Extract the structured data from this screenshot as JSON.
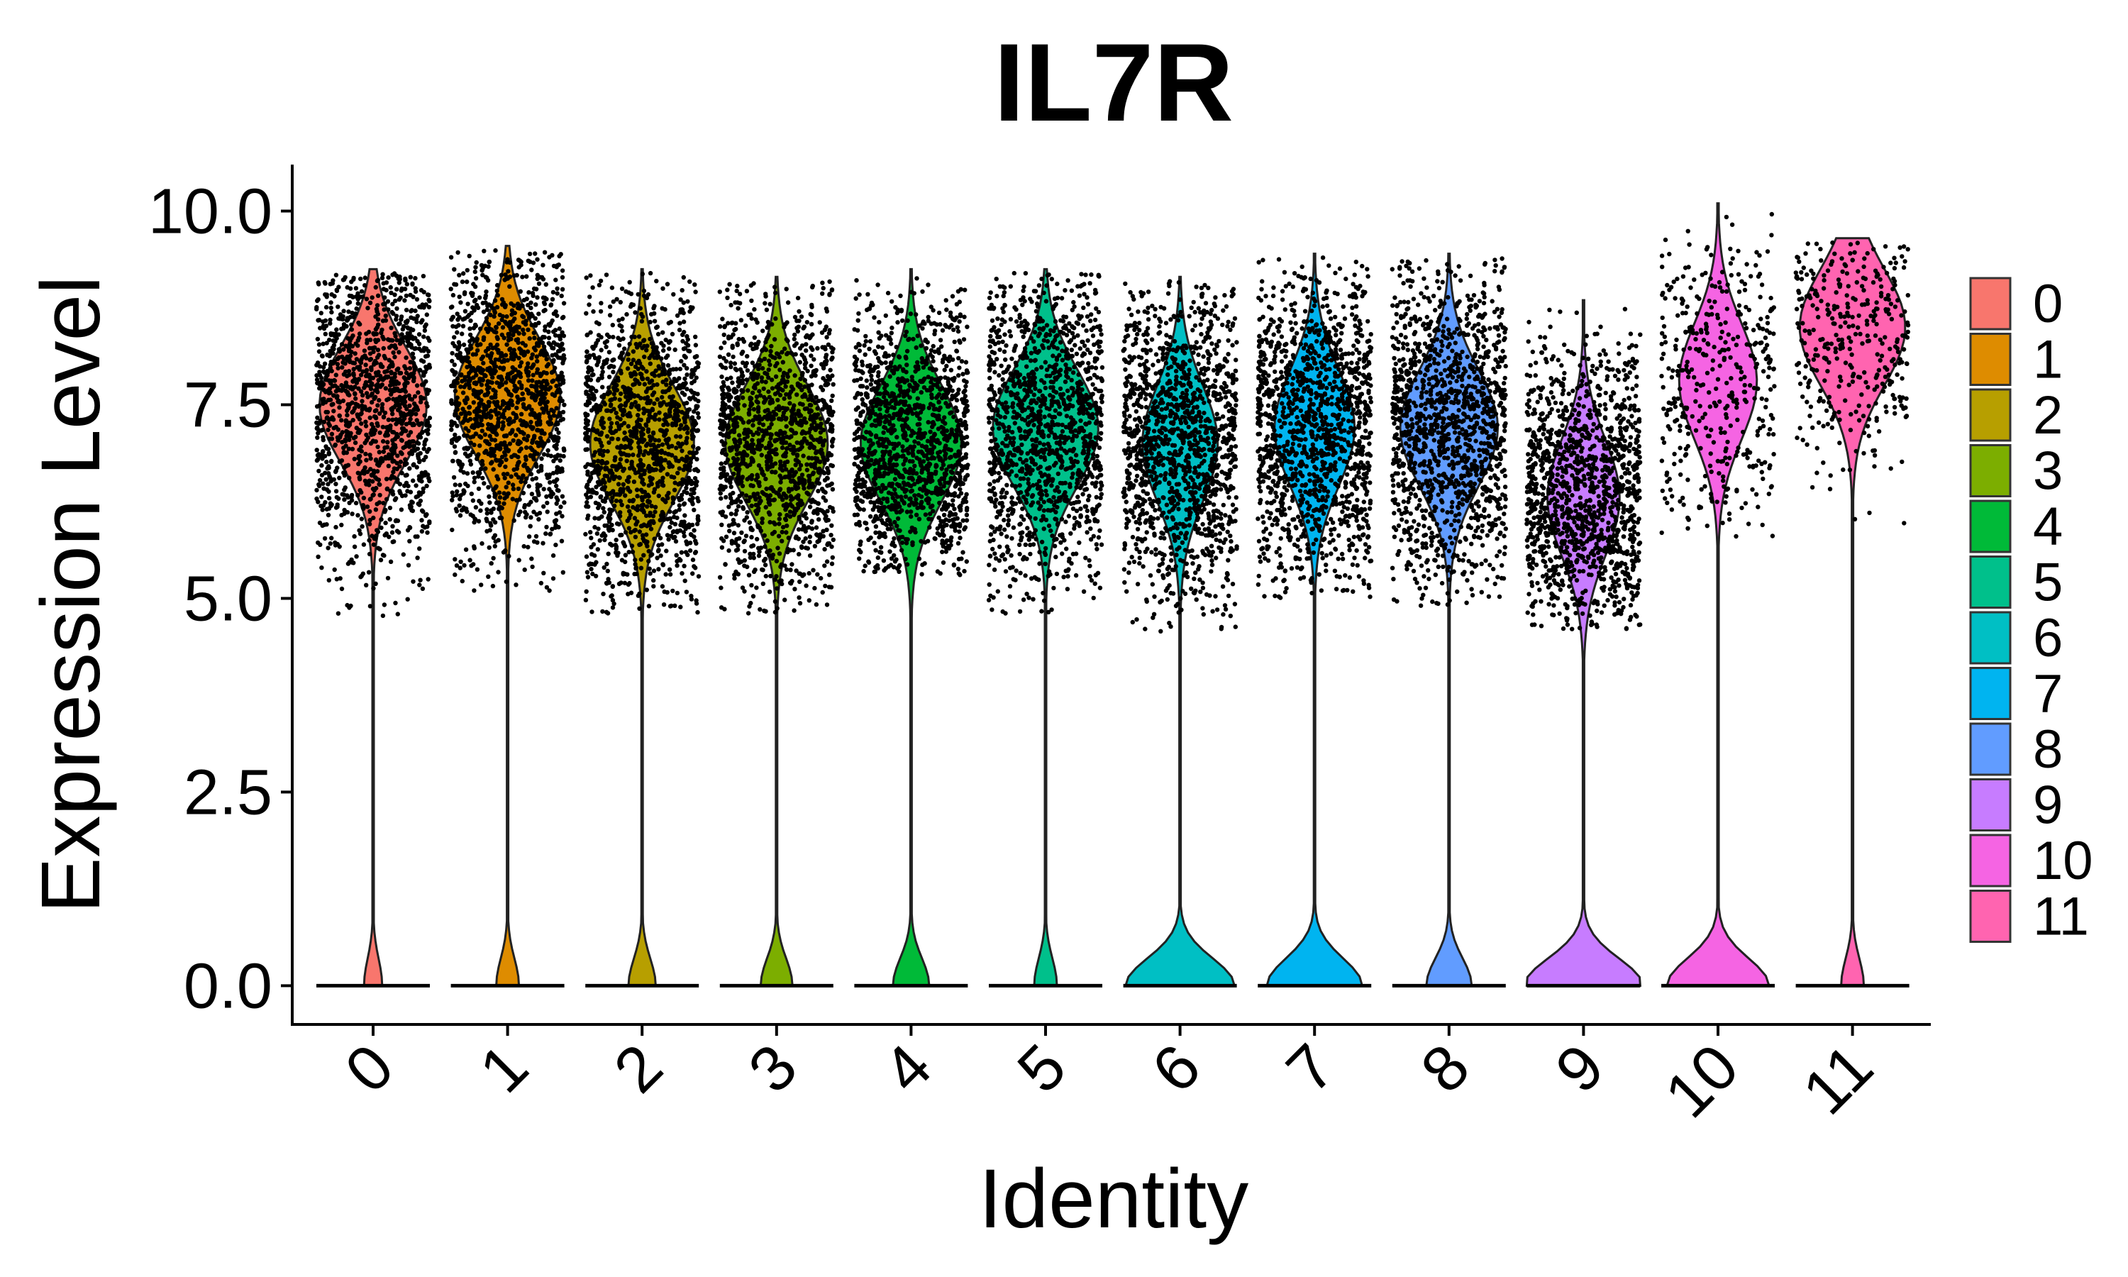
{
  "chart_data": {
    "type": "violin",
    "title": "IL7R",
    "xlabel": "Identity",
    "ylabel": "Expression Level",
    "ylim": [
      -0.5,
      10.6
    ],
    "yticks": [
      "0.0",
      "2.5",
      "5.0",
      "7.5",
      "10.0"
    ],
    "ytick_values": [
      0,
      2.5,
      5,
      7.5,
      10
    ],
    "categories": [
      "0",
      "1",
      "2",
      "3",
      "4",
      "5",
      "6",
      "7",
      "8",
      "9",
      "10",
      "11"
    ],
    "legend_position": "right",
    "colors": [
      "#F8766D",
      "#DE8C00",
      "#B79F00",
      "#7CAE00",
      "#00BA38",
      "#00C08B",
      "#00BFC4",
      "#00B4F0",
      "#619CFF",
      "#C77CFF",
      "#F564E3",
      "#FF64B0"
    ],
    "groups": [
      {
        "name": "0",
        "expr_min": 4.7,
        "expr_max": 9.2,
        "expr_center": 7.5,
        "zero_fraction": 0.08,
        "dense_points": true
      },
      {
        "name": "1",
        "expr_min": 5.1,
        "expr_max": 9.5,
        "expr_center": 7.6,
        "zero_fraction": 0.1,
        "dense_points": true
      },
      {
        "name": "2",
        "expr_min": 4.8,
        "expr_max": 9.2,
        "expr_center": 7.0,
        "zero_fraction": 0.12,
        "dense_points": true
      },
      {
        "name": "3",
        "expr_min": 4.8,
        "expr_max": 9.1,
        "expr_center": 7.0,
        "zero_fraction": 0.14,
        "dense_points": true
      },
      {
        "name": "4",
        "expr_min": 5.3,
        "expr_max": 9.2,
        "expr_center": 7.0,
        "zero_fraction": 0.16,
        "dense_points": true
      },
      {
        "name": "5",
        "expr_min": 4.8,
        "expr_max": 9.2,
        "expr_center": 7.2,
        "zero_fraction": 0.1,
        "dense_points": true
      },
      {
        "name": "6",
        "expr_min": 4.5,
        "expr_max": 9.1,
        "expr_center": 7.0,
        "zero_fraction": 0.48,
        "dense_points": true
      },
      {
        "name": "7",
        "expr_min": 5.0,
        "expr_max": 9.4,
        "expr_center": 7.2,
        "zero_fraction": 0.42,
        "dense_points": true
      },
      {
        "name": "8",
        "expr_min": 4.9,
        "expr_max": 9.4,
        "expr_center": 7.2,
        "zero_fraction": 0.2,
        "dense_points": true
      },
      {
        "name": "9",
        "expr_min": 4.6,
        "expr_max": 8.8,
        "expr_center": 6.3,
        "zero_fraction": 0.52,
        "dense_points": true
      },
      {
        "name": "10",
        "expr_min": 5.8,
        "expr_max": 10.05,
        "expr_center": 7.8,
        "zero_fraction": 0.45,
        "dense_points": false
      },
      {
        "name": "11",
        "expr_min": 5.8,
        "expr_max": 9.6,
        "expr_center": 8.5,
        "zero_fraction": 0.1,
        "dense_points": false
      }
    ]
  }
}
